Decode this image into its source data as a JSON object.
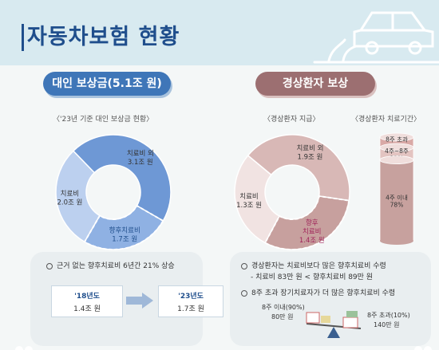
{
  "header": {
    "title": "자동차보험 현황"
  },
  "left": {
    "ribbon": "대인 보상금(5.1조 원)",
    "caption": "〈'23년 기준 대인 보상금 현황〉",
    "note": "근거 없는 향후치료비 6년간 21% 상승",
    "from_year": "'18년도",
    "from_value": "1.4조 원",
    "to_year": "'23년도",
    "to_value": "1.7조 원"
  },
  "right": {
    "ribbon": "경상환자 보상",
    "caption_donut": "〈경상환자 지급〉",
    "caption_bar": "〈경상환자 치료기간〉",
    "note1": "경상환자는 치료비보다 많은 향후치료비 수령",
    "note1_sub": "- 치료비 83만 원 < 향후치료비 89만 원",
    "note2": "8주 초과 장기치료자가 더 많은 향후치료비 수령",
    "scale_left_label": "8주 이내(90%)",
    "scale_left_value": "80만 원",
    "scale_right_label": "8주 초과(10%)",
    "scale_right_value": "140만 원"
  },
  "colors": {
    "brand_blue": "#1f4e8c",
    "rose": "#9c6f71",
    "blue_light": "#bcd0ef",
    "blue_mid": "#8fb1e3",
    "blue_dark": "#6e98d5",
    "rose_light": "#f1e3e2",
    "rose_mid": "#d8b8b6",
    "rose_dark": "#c7a09e"
  },
  "chart_data": [
    {
      "type": "pie",
      "title": "'23년 기준 대인 보상금 현황",
      "slices": [
        {
          "label": "치료비",
          "value_label": "2.0조 원",
          "value": 2.0
        },
        {
          "label": "치료비 외",
          "value_label": "3.1조 원",
          "value": 3.1
        },
        {
          "label": "향후치료비",
          "value_label": "1.7조 원",
          "value": 1.7
        }
      ]
    },
    {
      "type": "pie",
      "title": "경상환자 지급",
      "slices": [
        {
          "label": "치료비",
          "value_label": "1.3조 원",
          "value": 1.3
        },
        {
          "label": "치료비 외",
          "value_label": "1.9조 원",
          "value": 1.9
        },
        {
          "label": "향후 치료비",
          "value_label": "1.4조 원",
          "value": 1.4
        }
      ]
    },
    {
      "type": "bar",
      "title": "경상환자 치료기간",
      "categories": [
        "8주 초과",
        "4주~8주",
        "4주 이내"
      ],
      "values": [
        10,
        12,
        78
      ],
      "value_labels": [
        "10%",
        "12%",
        "78%"
      ]
    }
  ]
}
